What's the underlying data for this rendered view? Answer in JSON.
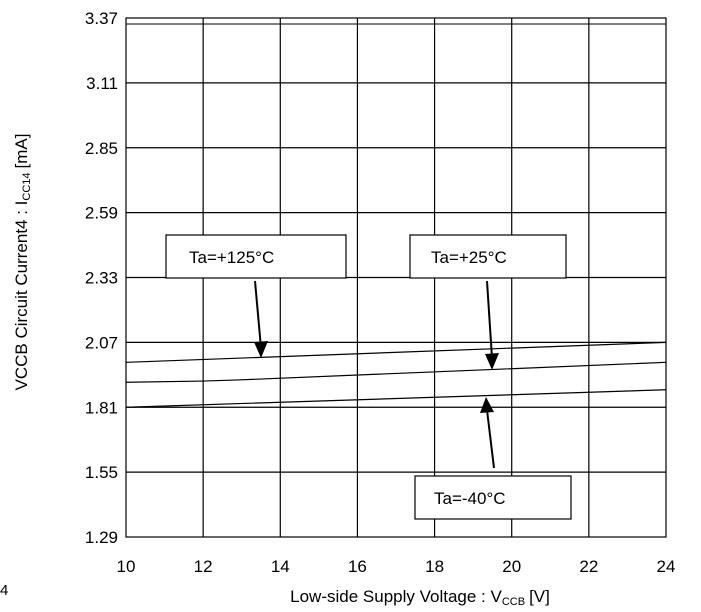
{
  "chart_data": {
    "type": "line",
    "title": "",
    "xlabel": "Low-side Supply Voltage : V",
    "xlabel_subscript": "CCB",
    "xlabel_unit": "[V]",
    "ylabel": "VCCB Circuit Current4 : I",
    "ylabel_subscript": "CC14",
    "ylabel_unit": "[mA]",
    "xlim": [
      10,
      24
    ],
    "ylim": [
      1.29,
      3.37
    ],
    "x_ticks": [
      10,
      12,
      14,
      16,
      18,
      20,
      22,
      24
    ],
    "y_ticks": [
      "1.29",
      "1.55",
      "1.81",
      "2.07",
      "2.33",
      "2.59",
      "2.85",
      "3.11",
      "3.37"
    ],
    "grid": true,
    "series": [
      {
        "x": [
          10,
          24
        ],
        "y": [
          1.99,
          2.07
        ]
      },
      {
        "x": [
          10,
          12,
          13,
          24
        ],
        "y": [
          1.91,
          1.915,
          1.92,
          1.99
        ]
      },
      {
        "x": [
          10,
          24
        ],
        "y": [
          1.81,
          1.88
        ]
      }
    ],
    "annotations": [
      {
        "text": "Ta=+125°C",
        "x": 13.5,
        "y": 2.0
      },
      {
        "text": "Ta=+25°C",
        "x": 19.5,
        "y": 1.95
      },
      {
        "text": "Ta=-40°C",
        "x": 19.4,
        "y": 1.85
      }
    ]
  },
  "stray_label": "4"
}
